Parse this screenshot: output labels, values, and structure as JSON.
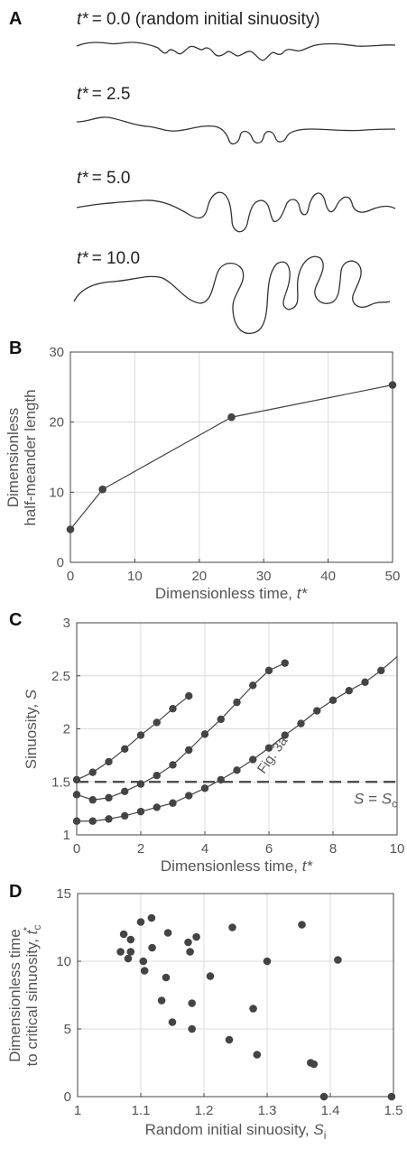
{
  "panels": {
    "A": {
      "letter": "A",
      "snapshots": [
        {
          "label_var": "t*",
          "label_value": "= 0.0 (random initial sinuosity)"
        },
        {
          "label_var": "t*",
          "label_value": "= 2.5"
        },
        {
          "label_var": "t*",
          "label_value": "= 5.0"
        },
        {
          "label_var": "t*",
          "label_value": "= 10.0"
        }
      ]
    },
    "B": {
      "letter": "B"
    },
    "C": {
      "letter": "C",
      "ref_label": "Fig. 3a",
      "sc_label_left": "S",
      "sc_label_eq": " = ",
      "sc_label_right": "S",
      "sc_label_sub": "c"
    },
    "D": {
      "letter": "D"
    }
  },
  "chart_data": [
    {
      "panel": "B",
      "type": "line",
      "xlabel": "Dimensionless time, t*",
      "ylabel_line1": "Dimensionless",
      "ylabel_line2": "half-meander length",
      "xlim": [
        0,
        50
      ],
      "ylim": [
        0,
        30
      ],
      "xticks": [
        0,
        10,
        20,
        30,
        40,
        50
      ],
      "yticks": [
        0,
        10,
        20,
        30
      ],
      "grid": true,
      "series": [
        {
          "x": [
            0,
            5,
            25,
            50
          ],
          "y": [
            4.7,
            10.4,
            20.7,
            25.3
          ]
        }
      ]
    },
    {
      "panel": "C",
      "type": "line",
      "xlabel": "Dimensionless time, t*",
      "ylabel": "Sinuosity, S",
      "xlim": [
        0,
        10
      ],
      "ylim": [
        1,
        3
      ],
      "xticks": [
        0,
        2,
        4,
        6,
        8,
        10
      ],
      "yticks": [
        1,
        1.5,
        2,
        2.5,
        3
      ],
      "ytick_labels": [
        "1",
        "1.5",
        "2",
        "2.5",
        "3"
      ],
      "grid": true,
      "critical_sinuosity": 1.5,
      "series": [
        {
          "x": [
            0,
            0.5,
            1,
            1.5,
            2,
            2.5,
            3,
            3.5
          ],
          "y": [
            1.52,
            1.59,
            1.69,
            1.81,
            1.94,
            2.06,
            2.19,
            2.31
          ]
        },
        {
          "x": [
            0,
            0.5,
            1,
            1.5,
            2,
            2.5,
            3,
            3.5,
            4,
            4.5,
            5,
            5.5,
            6,
            6.5
          ],
          "y": [
            1.38,
            1.33,
            1.35,
            1.41,
            1.48,
            1.56,
            1.66,
            1.8,
            1.95,
            2.09,
            2.25,
            2.41,
            2.55,
            2.62
          ]
        },
        {
          "x": [
            0,
            0.5,
            1,
            1.5,
            2,
            2.5,
            3,
            3.5,
            4,
            4.5,
            5,
            5.5,
            6,
            6.5,
            7,
            7.5,
            8,
            8.5,
            9,
            9.5
          ],
          "y": [
            1.13,
            1.13,
            1.15,
            1.18,
            1.22,
            1.26,
            1.3,
            1.37,
            1.44,
            1.52,
            1.61,
            1.71,
            1.82,
            1.94,
            2.05,
            2.17,
            2.27,
            2.36,
            2.44,
            2.55
          ],
          "extend_to": {
            "x": 10,
            "y": 2.68
          }
        }
      ]
    },
    {
      "panel": "D",
      "type": "scatter",
      "xlabel": "Random initial sinuosity, S",
      "xlabel_sub": "i",
      "ylabel_line1": "Dimensionless time",
      "ylabel_line2": "to critical sinuosity, t",
      "ylabel_sub": "c",
      "ylabel_sup": "*",
      "xlim": [
        1,
        1.5
      ],
      "ylim": [
        0,
        15
      ],
      "xticks": [
        1,
        1.1,
        1.2,
        1.3,
        1.4,
        1.5
      ],
      "xtick_labels": [
        "1",
        "1.1",
        "1.2",
        "1.3",
        "1.4",
        "1.5"
      ],
      "yticks": [
        0,
        5,
        10,
        15
      ],
      "grid": true,
      "points": [
        [
          1.068,
          10.7
        ],
        [
          1.073,
          12.0
        ],
        [
          1.08,
          10.2
        ],
        [
          1.084,
          11.6
        ],
        [
          1.084,
          10.7
        ],
        [
          1.1,
          12.9
        ],
        [
          1.104,
          10.0
        ],
        [
          1.106,
          9.3
        ],
        [
          1.117,
          13.2
        ],
        [
          1.118,
          11.0
        ],
        [
          1.133,
          7.1
        ],
        [
          1.14,
          8.8
        ],
        [
          1.143,
          12.1
        ],
        [
          1.15,
          5.5
        ],
        [
          1.175,
          11.4
        ],
        [
          1.178,
          10.7
        ],
        [
          1.181,
          6.9
        ],
        [
          1.181,
          5.0
        ],
        [
          1.188,
          11.8
        ],
        [
          1.21,
          8.9
        ],
        [
          1.24,
          4.2
        ],
        [
          1.245,
          12.5
        ],
        [
          1.278,
          6.5
        ],
        [
          1.284,
          3.1
        ],
        [
          1.3,
          10.0
        ],
        [
          1.355,
          12.7
        ],
        [
          1.369,
          2.5
        ],
        [
          1.374,
          2.4
        ],
        [
          1.39,
          0.0
        ],
        [
          1.412,
          10.1
        ],
        [
          1.497,
          0.0
        ]
      ]
    }
  ]
}
